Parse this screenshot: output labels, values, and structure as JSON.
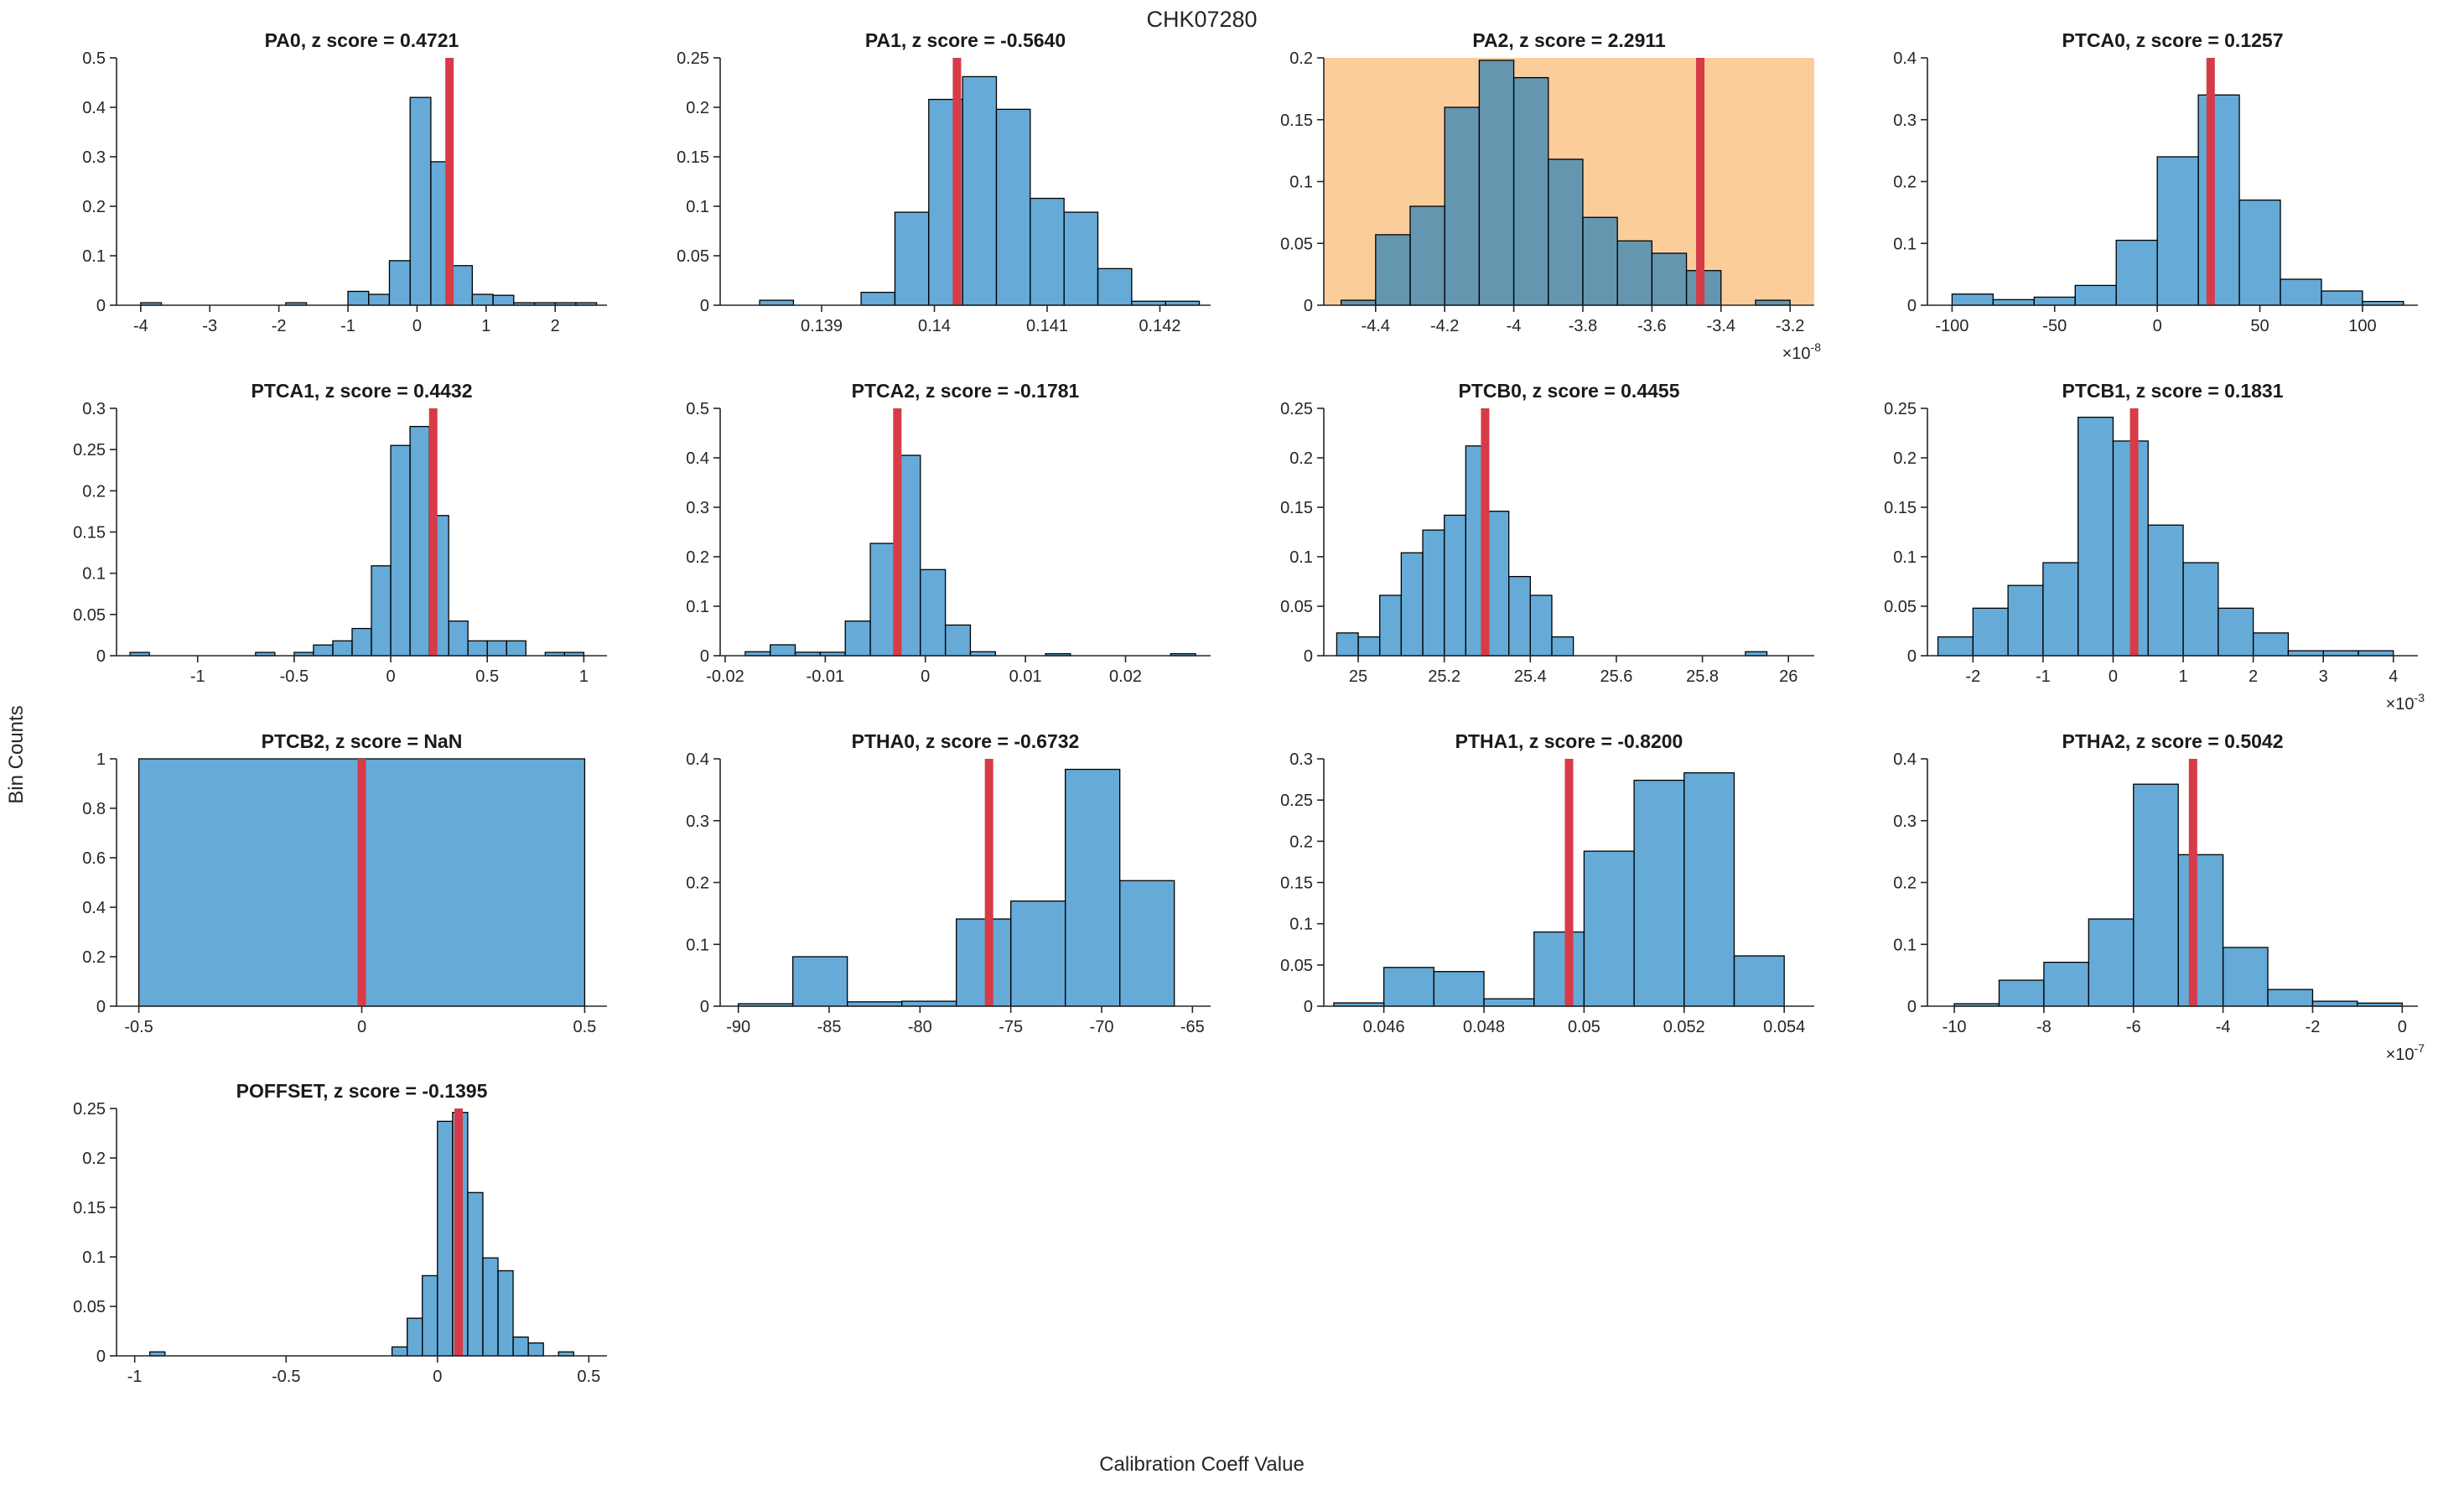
{
  "figure": {
    "title": "CHK07280",
    "xlabel": "Calibration Coeff Value",
    "ylabel": "Bin Counts"
  },
  "colors": {
    "bar_fill": "rgba(0,114,189,0.6)",
    "bar_edge": "#000000",
    "marker_line": "#d63b47",
    "highlight_bg": "#facd9b",
    "axis": "#262626",
    "text": "#262626",
    "title_text": "#1a1a1a"
  },
  "chart_data": [
    {
      "type": "bar",
      "name": "PA0",
      "title": "PA0, z score = 0.4721",
      "z_score": "0.4721",
      "highlighted": false,
      "x_exponent": null,
      "xlim": [
        -4.35,
        2.75
      ],
      "ylim": [
        0,
        0.5
      ],
      "xticks": [
        -4,
        -3,
        -2,
        -1,
        0,
        1,
        2
      ],
      "yticks": [
        0,
        0.1,
        0.2,
        0.3,
        0.4,
        0.5
      ],
      "marker_x": 0.47,
      "bins": [
        [
          -4.0,
          -3.7,
          0.005
        ],
        [
          -1.9,
          -1.6,
          0.005
        ],
        [
          -1.0,
          -0.7,
          0.028
        ],
        [
          -0.7,
          -0.4,
          0.022
        ],
        [
          -0.4,
          -0.1,
          0.09
        ],
        [
          -0.1,
          0.2,
          0.42
        ],
        [
          0.2,
          0.5,
          0.29
        ],
        [
          0.5,
          0.8,
          0.08
        ],
        [
          0.8,
          1.1,
          0.022
        ],
        [
          1.1,
          1.4,
          0.02
        ],
        [
          1.4,
          1.7,
          0.005
        ],
        [
          1.7,
          2.0,
          0.005
        ],
        [
          2.0,
          2.3,
          0.005
        ],
        [
          2.3,
          2.6,
          0.005
        ]
      ]
    },
    {
      "type": "bar",
      "name": "PA1",
      "title": "PA1, z score = -0.5640",
      "z_score": "-0.5640",
      "highlighted": false,
      "x_exponent": null,
      "xlim": [
        0.1381,
        0.14245
      ],
      "ylim": [
        0,
        0.25
      ],
      "xticks": [
        0.139,
        0.14,
        0.141,
        0.142
      ],
      "yticks": [
        0,
        0.05,
        0.1,
        0.15,
        0.2,
        0.25
      ],
      "marker_x": 0.1402,
      "bins": [
        [
          0.13845,
          0.13875,
          0.005
        ],
        [
          0.13935,
          0.13965,
          0.013
        ],
        [
          0.13965,
          0.13995,
          0.094
        ],
        [
          0.13995,
          0.14025,
          0.208
        ],
        [
          0.14025,
          0.14055,
          0.231
        ],
        [
          0.14055,
          0.14085,
          0.198
        ],
        [
          0.14085,
          0.14115,
          0.108
        ],
        [
          0.14115,
          0.14145,
          0.094
        ],
        [
          0.14145,
          0.14175,
          0.037
        ],
        [
          0.14175,
          0.14205,
          0.004
        ],
        [
          0.14205,
          0.14235,
          0.004
        ]
      ]
    },
    {
      "type": "bar",
      "name": "PA2",
      "title": "PA2, z score = 2.2911",
      "z_score": "2.2911",
      "highlighted": true,
      "x_exponent": "-8",
      "xlim": [
        -4.55,
        -3.13
      ],
      "ylim": [
        0,
        0.2
      ],
      "xticks": [
        -4.4,
        -4.2,
        -4,
        -3.8,
        -3.6,
        -3.4,
        -3.2
      ],
      "yticks": [
        0,
        0.05,
        0.1,
        0.15,
        0.2
      ],
      "marker_x": -3.46,
      "bins": [
        [
          -4.5,
          -4.4,
          0.004
        ],
        [
          -4.4,
          -4.3,
          0.057
        ],
        [
          -4.3,
          -4.2,
          0.08
        ],
        [
          -4.2,
          -4.1,
          0.16
        ],
        [
          -4.1,
          -4.0,
          0.198
        ],
        [
          -4.0,
          -3.9,
          0.184
        ],
        [
          -3.9,
          -3.8,
          0.118
        ],
        [
          -3.8,
          -3.7,
          0.071
        ],
        [
          -3.7,
          -3.6,
          0.052
        ],
        [
          -3.6,
          -3.5,
          0.042
        ],
        [
          -3.5,
          -3.4,
          0.028
        ],
        [
          -3.3,
          -3.2,
          0.004
        ]
      ]
    },
    {
      "type": "bar",
      "name": "PTCA0",
      "title": "PTCA0, z score = 0.1257",
      "z_score": "0.1257",
      "highlighted": false,
      "x_exponent": null,
      "xlim": [
        -112,
        127
      ],
      "ylim": [
        0,
        0.4
      ],
      "xticks": [
        -100,
        -50,
        0,
        50,
        100
      ],
      "yticks": [
        0,
        0.1,
        0.2,
        0.3,
        0.4
      ],
      "marker_x": 26,
      "bins": [
        [
          -100,
          -80,
          0.018
        ],
        [
          -80,
          -60,
          0.009
        ],
        [
          -60,
          -40,
          0.013
        ],
        [
          -40,
          -20,
          0.032
        ],
        [
          -20,
          0,
          0.105
        ],
        [
          0,
          20,
          0.24
        ],
        [
          20,
          40,
          0.34
        ],
        [
          40,
          60,
          0.17
        ],
        [
          60,
          80,
          0.042
        ],
        [
          80,
          100,
          0.023
        ],
        [
          100,
          120,
          0.006
        ]
      ]
    },
    {
      "type": "bar",
      "name": "PTCA1",
      "title": "PTCA1, z score = 0.4432",
      "z_score": "0.4432",
      "highlighted": false,
      "x_exponent": null,
      "xlim": [
        -1.42,
        1.12
      ],
      "ylim": [
        0,
        0.3
      ],
      "xticks": [
        -1,
        -0.5,
        0,
        0.5,
        1
      ],
      "yticks": [
        0,
        0.05,
        0.1,
        0.15,
        0.2,
        0.25,
        0.3
      ],
      "marker_x": 0.22,
      "bins": [
        [
          -1.35,
          -1.25,
          0.004
        ],
        [
          -0.7,
          -0.6,
          0.004
        ],
        [
          -0.5,
          -0.4,
          0.004
        ],
        [
          -0.4,
          -0.3,
          0.013
        ],
        [
          -0.3,
          -0.2,
          0.018
        ],
        [
          -0.2,
          -0.1,
          0.033
        ],
        [
          -0.1,
          0,
          0.109
        ],
        [
          0,
          0.1,
          0.255
        ],
        [
          0.1,
          0.2,
          0.278
        ],
        [
          0.2,
          0.3,
          0.17
        ],
        [
          0.3,
          0.4,
          0.042
        ],
        [
          0.4,
          0.5,
          0.018
        ],
        [
          0.5,
          0.6,
          0.018
        ],
        [
          0.6,
          0.7,
          0.018
        ],
        [
          0.8,
          0.9,
          0.004
        ],
        [
          0.9,
          1.0,
          0.004
        ]
      ]
    },
    {
      "type": "bar",
      "name": "PTCA2",
      "title": "PTCA2, z score = -0.1781",
      "z_score": "-0.1781",
      "highlighted": false,
      "x_exponent": null,
      "xlim": [
        -0.0205,
        0.0285
      ],
      "ylim": [
        0,
        0.5
      ],
      "xticks": [
        -0.02,
        -0.01,
        0,
        0.01,
        0.02
      ],
      "yticks": [
        0,
        0.1,
        0.2,
        0.3,
        0.4,
        0.5
      ],
      "marker_x": -0.0028,
      "bins": [
        [
          -0.018,
          -0.0155,
          0.008
        ],
        [
          -0.0155,
          -0.013,
          0.022
        ],
        [
          -0.013,
          -0.0105,
          0.007
        ],
        [
          -0.0105,
          -0.008,
          0.007
        ],
        [
          -0.008,
          -0.0055,
          0.07
        ],
        [
          -0.0055,
          -0.003,
          0.227
        ],
        [
          -0.003,
          -0.0005,
          0.405
        ],
        [
          -0.0005,
          0.002,
          0.174
        ],
        [
          0.002,
          0.0045,
          0.062
        ],
        [
          0.0045,
          0.007,
          0.008
        ],
        [
          0.012,
          0.0145,
          0.004
        ],
        [
          0.0245,
          0.027,
          0.004
        ]
      ]
    },
    {
      "type": "bar",
      "name": "PTCB0",
      "title": "PTCB0, z score = 0.4455",
      "z_score": "0.4455",
      "highlighted": false,
      "x_exponent": null,
      "xlim": [
        24.92,
        26.06
      ],
      "ylim": [
        0,
        0.25
      ],
      "xticks": [
        25,
        25.2,
        25.4,
        25.6,
        25.8,
        26
      ],
      "yticks": [
        0,
        0.05,
        0.1,
        0.15,
        0.2,
        0.25
      ],
      "marker_x": 25.295,
      "bins": [
        [
          24.95,
          25,
          0.023
        ],
        [
          25,
          25.05,
          0.019
        ],
        [
          25.05,
          25.1,
          0.061
        ],
        [
          25.1,
          25.15,
          0.104
        ],
        [
          25.15,
          25.2,
          0.127
        ],
        [
          25.2,
          25.25,
          0.142
        ],
        [
          25.25,
          25.3,
          0.212
        ],
        [
          25.3,
          25.35,
          0.146
        ],
        [
          25.35,
          25.4,
          0.08
        ],
        [
          25.4,
          25.45,
          0.061
        ],
        [
          25.45,
          25.5,
          0.019
        ],
        [
          25.9,
          25.95,
          0.004
        ]
      ]
    },
    {
      "type": "bar",
      "name": "PTCB1",
      "title": "PTCB1, z score = 0.1831",
      "z_score": "0.1831",
      "highlighted": false,
      "x_exponent": "-3",
      "xlim": [
        -2.65,
        4.35
      ],
      "ylim": [
        0,
        0.25
      ],
      "xticks": [
        -2,
        -1,
        0,
        1,
        2,
        3,
        4
      ],
      "yticks": [
        0,
        0.05,
        0.1,
        0.15,
        0.2,
        0.25
      ],
      "marker_x": 0.3,
      "bins": [
        [
          -2.5,
          -2,
          0.019
        ],
        [
          -2,
          -1.5,
          0.048
        ],
        [
          -1.5,
          -1,
          0.071
        ],
        [
          -1,
          -0.5,
          0.094
        ],
        [
          -0.5,
          0,
          0.241
        ],
        [
          0,
          0.5,
          0.217
        ],
        [
          0.5,
          1,
          0.132
        ],
        [
          1,
          1.5,
          0.094
        ],
        [
          1.5,
          2,
          0.048
        ],
        [
          2,
          2.5,
          0.023
        ],
        [
          2.5,
          3,
          0.005
        ],
        [
          3,
          3.5,
          0.005
        ],
        [
          3.5,
          4,
          0.005
        ]
      ]
    },
    {
      "type": "bar",
      "name": "PTCB2",
      "title": "PTCB2, z score = NaN",
      "z_score": "NaN",
      "highlighted": false,
      "x_exponent": null,
      "xlim": [
        -0.55,
        0.55
      ],
      "ylim": [
        0,
        1
      ],
      "xticks": [
        -0.5,
        0,
        0.5
      ],
      "yticks": [
        0,
        0.2,
        0.4,
        0.6,
        0.8,
        1
      ],
      "marker_x": 0,
      "bins": [
        [
          -0.5,
          0.5,
          1
        ]
      ]
    },
    {
      "type": "bar",
      "name": "PTHA0",
      "title": "PTHA0, z score = -0.6732",
      "z_score": "-0.6732",
      "highlighted": false,
      "x_exponent": null,
      "xlim": [
        -91,
        -64
      ],
      "ylim": [
        0,
        0.4
      ],
      "xticks": [
        -90,
        -85,
        -80,
        -75,
        -70,
        -65
      ],
      "yticks": [
        0,
        0.1,
        0.2,
        0.3,
        0.4
      ],
      "marker_x": -76.2,
      "bins": [
        [
          -90,
          -87,
          0.004
        ],
        [
          -87,
          -84,
          0.08
        ],
        [
          -84,
          -81,
          0.007
        ],
        [
          -81,
          -78,
          0.008
        ],
        [
          -78,
          -75,
          0.141
        ],
        [
          -75,
          -72,
          0.17
        ],
        [
          -72,
          -69,
          0.383
        ],
        [
          -69,
          -66,
          0.203
        ]
      ]
    },
    {
      "type": "bar",
      "name": "PTHA1",
      "title": "PTHA1, z score = -0.8200",
      "z_score": "-0.8200",
      "highlighted": false,
      "x_exponent": null,
      "xlim": [
        0.0448,
        0.0546
      ],
      "ylim": [
        0,
        0.3
      ],
      "xticks": [
        0.046,
        0.048,
        0.05,
        0.052,
        0.054
      ],
      "yticks": [
        0,
        0.05,
        0.1,
        0.15,
        0.2,
        0.25,
        0.3
      ],
      "marker_x": 0.0497,
      "bins": [
        [
          0.045,
          0.046,
          0.004
        ],
        [
          0.046,
          0.047,
          0.047
        ],
        [
          0.047,
          0.048,
          0.042
        ],
        [
          0.048,
          0.049,
          0.009
        ],
        [
          0.049,
          0.05,
          0.09
        ],
        [
          0.05,
          0.051,
          0.188
        ],
        [
          0.051,
          0.052,
          0.274
        ],
        [
          0.052,
          0.053,
          0.283
        ],
        [
          0.053,
          0.054,
          0.061
        ]
      ]
    },
    {
      "type": "bar",
      "name": "PTHA2",
      "title": "PTHA2, z score = 0.5042",
      "z_score": "0.5042",
      "highlighted": false,
      "x_exponent": "-7",
      "xlim": [
        -10.6,
        0.35
      ],
      "ylim": [
        0,
        0.4
      ],
      "xticks": [
        -10,
        -8,
        -6,
        -4,
        -2,
        0
      ],
      "yticks": [
        0,
        0.1,
        0.2,
        0.3,
        0.4
      ],
      "marker_x": -4.67,
      "bins": [
        [
          -10,
          -9,
          0.004
        ],
        [
          -9,
          -8,
          0.042
        ],
        [
          -8,
          -7,
          0.071
        ],
        [
          -7,
          -6,
          0.141
        ],
        [
          -6,
          -5,
          0.359
        ],
        [
          -5,
          -4,
          0.245
        ],
        [
          -4,
          -3,
          0.095
        ],
        [
          -3,
          -2,
          0.027
        ],
        [
          -2,
          -1,
          0.008
        ],
        [
          -1,
          0,
          0.005
        ]
      ]
    },
    {
      "type": "bar",
      "name": "POFFSET",
      "title": "POFFSET, z score = -0.1395",
      "z_score": "-0.1395",
      "highlighted": false,
      "x_exponent": null,
      "xlim": [
        -1.06,
        0.56
      ],
      "ylim": [
        0,
        0.25
      ],
      "xticks": [
        -1,
        -0.5,
        0,
        0.5
      ],
      "yticks": [
        0,
        0.05,
        0.1,
        0.15,
        0.2,
        0.25
      ],
      "marker_x": 0.07,
      "bins": [
        [
          -0.95,
          -0.9,
          0.004
        ],
        [
          -0.15,
          -0.1,
          0.009
        ],
        [
          -0.1,
          -0.05,
          0.038
        ],
        [
          -0.05,
          0,
          0.081
        ],
        [
          0,
          0.05,
          0.237
        ],
        [
          0.05,
          0.1,
          0.246
        ],
        [
          0.1,
          0.15,
          0.165
        ],
        [
          0.15,
          0.2,
          0.099
        ],
        [
          0.2,
          0.25,
          0.086
        ],
        [
          0.25,
          0.3,
          0.019
        ],
        [
          0.3,
          0.35,
          0.013
        ],
        [
          0.4,
          0.45,
          0.004
        ]
      ]
    }
  ]
}
